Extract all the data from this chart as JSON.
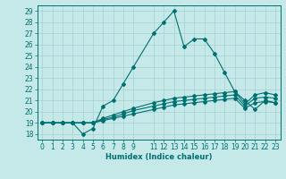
{
  "title": "",
  "xlabel": "Humidex (Indice chaleur)",
  "xlim": [
    -0.5,
    23.5
  ],
  "ylim": [
    17.5,
    29.5
  ],
  "xticks": [
    0,
    1,
    2,
    3,
    4,
    5,
    6,
    7,
    8,
    9,
    11,
    12,
    13,
    14,
    15,
    16,
    17,
    18,
    19,
    20,
    21,
    22,
    23
  ],
  "xtick_labels": [
    "0",
    "1",
    "2",
    "3",
    "4",
    "5",
    "6",
    "7",
    "8",
    "9",
    "11",
    "12",
    "13",
    "14",
    "15",
    "16",
    "17",
    "18",
    "19",
    "20",
    "21",
    "22",
    "23"
  ],
  "yticks": [
    18,
    19,
    20,
    21,
    22,
    23,
    24,
    25,
    26,
    27,
    28,
    29
  ],
  "bg_color": "#c5e8e8",
  "line_color": "#007070",
  "grid_color": "#a8d0d0",
  "lines": [
    {
      "x": [
        0,
        1,
        2,
        3,
        4,
        5,
        6,
        7,
        8,
        9,
        11,
        12,
        13,
        14,
        15,
        16,
        17,
        18,
        19,
        20,
        21,
        22,
        23
      ],
      "y": [
        19,
        19,
        19,
        19,
        18,
        18.5,
        20.5,
        21,
        22.5,
        24,
        27,
        28,
        29,
        25.8,
        26.5,
        26.5,
        25.2,
        23.5,
        21.8,
        21,
        20.2,
        21,
        20.8
      ]
    },
    {
      "x": [
        0,
        1,
        2,
        3,
        4,
        5,
        6,
        7,
        8,
        9,
        11,
        12,
        13,
        14,
        15,
        16,
        17,
        18,
        19,
        20,
        21,
        22,
        23
      ],
      "y": [
        19,
        19,
        19,
        19,
        19,
        19,
        19.2,
        19.4,
        19.6,
        19.8,
        20.2,
        20.4,
        20.6,
        20.7,
        20.8,
        20.9,
        21.0,
        21.1,
        21.2,
        20.3,
        20.8,
        20.9,
        20.8
      ]
    },
    {
      "x": [
        0,
        1,
        2,
        3,
        4,
        5,
        6,
        7,
        8,
        9,
        11,
        12,
        13,
        14,
        15,
        16,
        17,
        18,
        19,
        20,
        21,
        22,
        23
      ],
      "y": [
        19,
        19,
        19,
        19,
        19,
        19,
        19.3,
        19.5,
        19.8,
        20.1,
        20.5,
        20.7,
        20.9,
        21.0,
        21.1,
        21.2,
        21.3,
        21.4,
        21.5,
        20.5,
        21.2,
        21.3,
        21.2
      ]
    },
    {
      "x": [
        0,
        1,
        2,
        3,
        4,
        5,
        6,
        7,
        8,
        9,
        11,
        12,
        13,
        14,
        15,
        16,
        17,
        18,
        19,
        20,
        21,
        22,
        23
      ],
      "y": [
        19,
        19,
        19,
        19,
        19,
        19,
        19.4,
        19.7,
        20.0,
        20.3,
        20.8,
        21.0,
        21.2,
        21.3,
        21.4,
        21.5,
        21.6,
        21.7,
        21.8,
        20.7,
        21.5,
        21.7,
        21.5
      ]
    }
  ],
  "tick_fontsize": 5.5,
  "xlabel_fontsize": 6.0
}
